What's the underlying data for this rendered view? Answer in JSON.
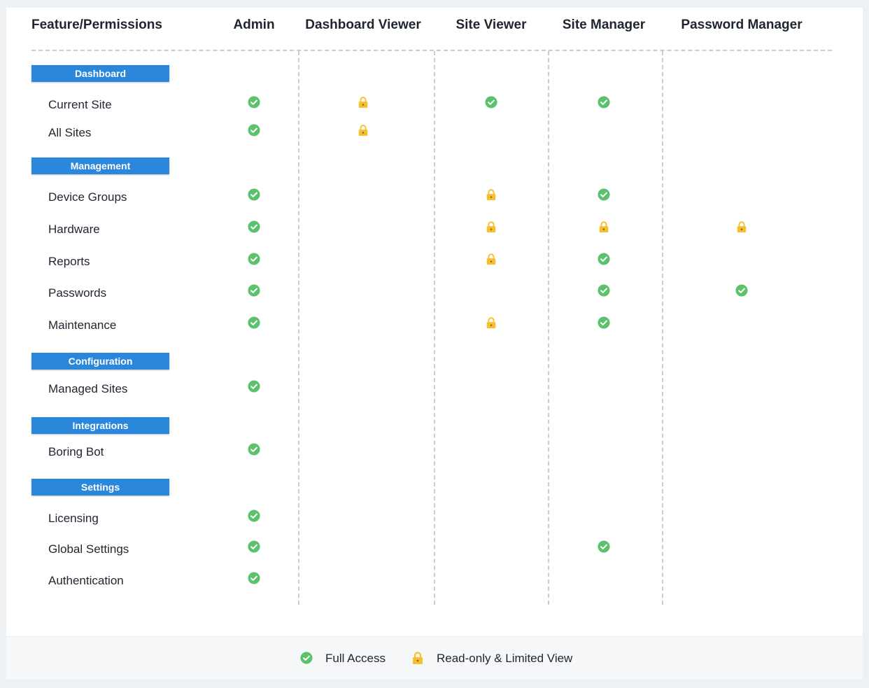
{
  "colors": {
    "full_access": "#5cc16b",
    "read_only": "#f5c030",
    "section_bg": "#2b87dc"
  },
  "headers": [
    "Feature/Permissions",
    "Admin",
    "Dashboard Viewer",
    "Site  Viewer",
    "Site  Manager",
    "Password  Manager"
  ],
  "sections": [
    {
      "title": "Dashboard",
      "rows": [
        {
          "label": "Current Site",
          "perms": [
            "full",
            "read",
            "full",
            "full",
            ""
          ]
        },
        {
          "label": "All Sites",
          "perms": [
            "full",
            "read",
            "",
            "",
            ""
          ]
        }
      ]
    },
    {
      "title": "Management",
      "rows": [
        {
          "label": "Device Groups",
          "perms": [
            "full",
            "",
            "read",
            "full",
            ""
          ]
        },
        {
          "label": "Hardware",
          "perms": [
            "full",
            "",
            "read",
            "read",
            "read"
          ]
        },
        {
          "label": "Reports",
          "perms": [
            "full",
            "",
            "read",
            "full",
            ""
          ]
        },
        {
          "label": "Passwords",
          "perms": [
            "full",
            "",
            "",
            "full",
            "full"
          ]
        },
        {
          "label": "Maintenance",
          "perms": [
            "full",
            "",
            "read",
            "full",
            ""
          ]
        }
      ]
    },
    {
      "title": "Configuration",
      "rows": [
        {
          "label": "Managed Sites",
          "perms": [
            "full",
            "",
            "",
            "",
            ""
          ]
        }
      ]
    },
    {
      "title": "Integrations",
      "rows": [
        {
          "label": "Boring Bot",
          "perms": [
            "full",
            "",
            "",
            "",
            ""
          ]
        }
      ]
    },
    {
      "title": "Settings",
      "rows": [
        {
          "label": "Licensing",
          "perms": [
            "full",
            "",
            "",
            "",
            ""
          ]
        },
        {
          "label": "Global Settings",
          "perms": [
            "full",
            "",
            "",
            "full",
            ""
          ]
        },
        {
          "label": "Authentication",
          "perms": [
            "full",
            "",
            "",
            "",
            ""
          ]
        }
      ]
    }
  ],
  "legend": {
    "full_access": "Full Access",
    "read_only": "Read-only & Limited View"
  },
  "icons": {
    "full": "check-circle-icon",
    "read": "lock-icon"
  }
}
